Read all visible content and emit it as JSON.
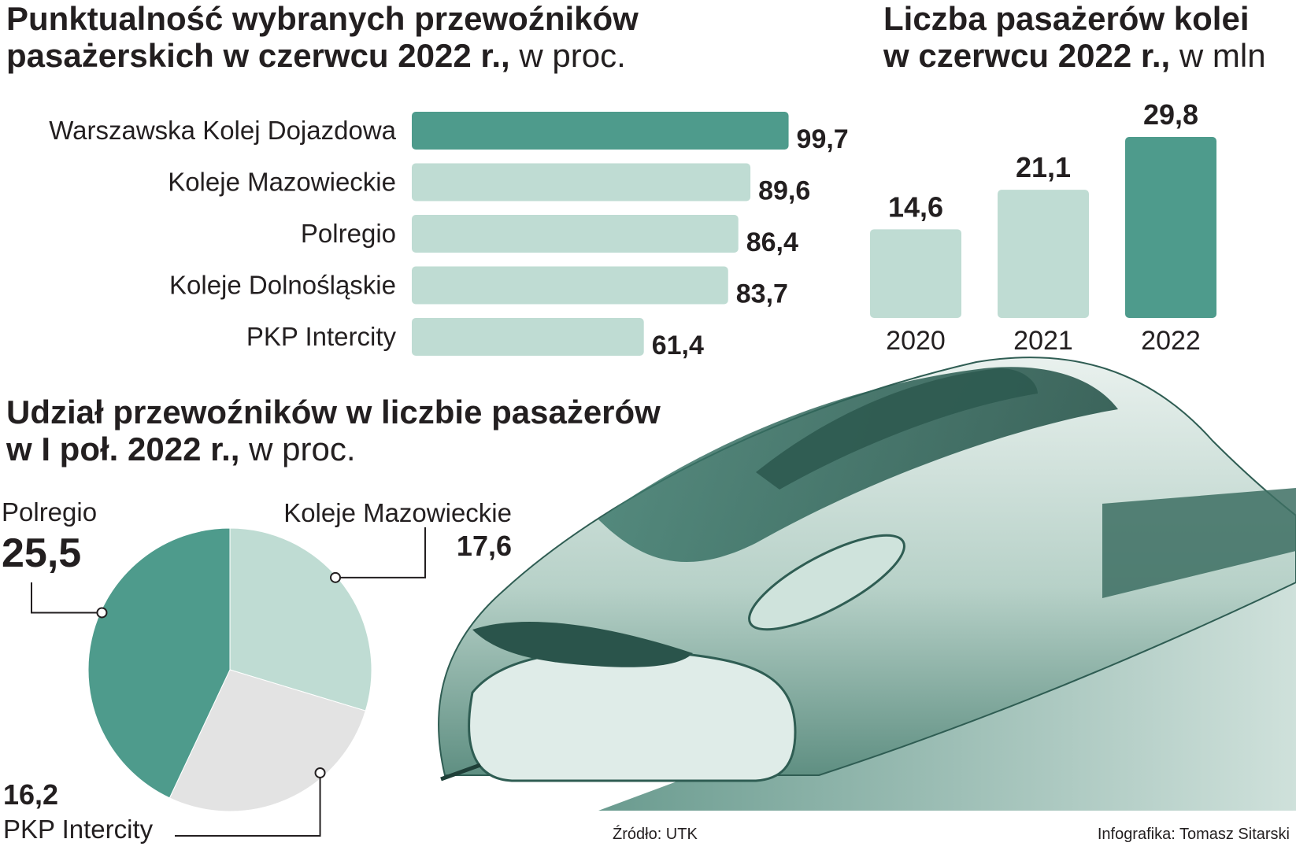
{
  "titles": {
    "punctuality": {
      "main": "Punktualność wybranych przewoźników pasażerskich w czerwcu 2022 r.,",
      "unit": " w proc."
    },
    "passengers": {
      "main": "Liczba pasażerów kolei w czerwcu 2022 r.,",
      "unit": " w mln"
    },
    "share": {
      "main": "Udział przewoźników w liczbie pasażerów w I poł. 2022 r.,",
      "unit": " w proc."
    }
  },
  "colors": {
    "dark": "#4e9b8c",
    "light": "#bfdcd3",
    "grey": "#e3e3e3",
    "text": "#231f20"
  },
  "chart_data": [
    {
      "type": "bar",
      "orientation": "horizontal",
      "categories": [
        "Warszawska Kolej Dojazdowa",
        "Koleje Mazowieckie",
        "Polregio",
        "Koleje Dolnośląskie",
        "PKP Intercity"
      ],
      "values": [
        99.7,
        89.6,
        86.4,
        83.7,
        61.4
      ],
      "value_labels": [
        "99,7",
        "89,6",
        "86,4",
        "83,7",
        "61,4"
      ],
      "highlight_index": 0,
      "xlim": [
        0,
        100
      ]
    },
    {
      "type": "bar",
      "orientation": "vertical",
      "categories": [
        "2020",
        "2021",
        "2022"
      ],
      "values": [
        14.6,
        21.1,
        29.8
      ],
      "value_labels": [
        "14,6",
        "21,1",
        "29,8"
      ],
      "highlight_index": 2,
      "ylim": [
        0,
        29.8
      ]
    },
    {
      "type": "pie",
      "slices": [
        {
          "label": "Koleje Mazowieckie",
          "value": 17.6,
          "value_label": "17,6",
          "color": "#bfdcd3"
        },
        {
          "label": "PKP Intercity",
          "value": 16.2,
          "value_label": "16,2",
          "color": "#e3e3e3"
        },
        {
          "label": "Polregio",
          "value": 25.5,
          "value_label": "25,5",
          "color": "#4e9b8c"
        }
      ]
    }
  ],
  "footer": {
    "source": "Źródło: UTK",
    "credit": "Infografika: Tomasz Sitarski"
  }
}
